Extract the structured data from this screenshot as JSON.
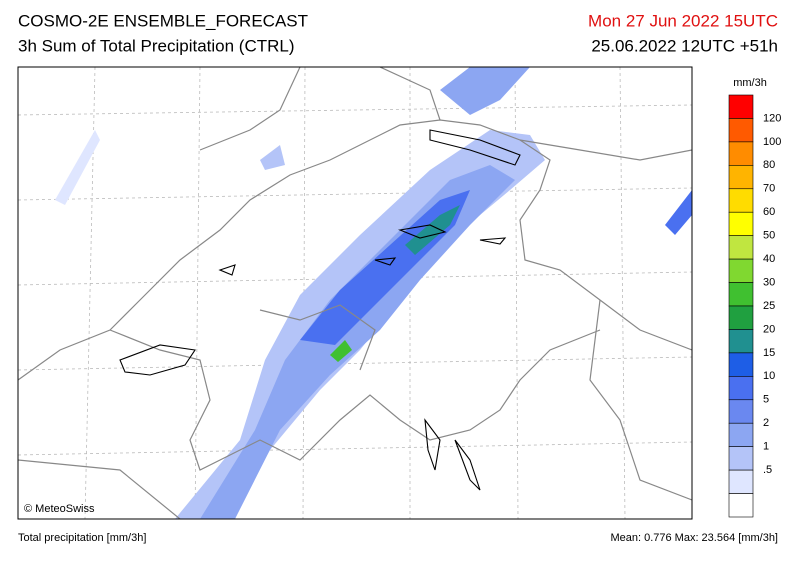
{
  "header": {
    "title": "COSMO-2E ENSEMBLE_FORECAST",
    "subtitle": "3h Sum of Total Precipitation (CTRL)",
    "valid_time": "Mon 27 Jun 2022 15UTC",
    "run": "25.06.2022 12UTC +51h"
  },
  "map": {
    "copyright": "© MeteoSwiss"
  },
  "legend": {
    "unit": "mm/3h",
    "labels": [
      "120",
      "100",
      "80",
      "70",
      "60",
      "50",
      "40",
      "30",
      "25",
      "20",
      "15",
      "10",
      "5",
      "2",
      "1",
      ".5"
    ],
    "colors": [
      "#ff0000",
      "#ff5a00",
      "#ff8c00",
      "#ffb400",
      "#ffdc00",
      "#ffff00",
      "#c0e640",
      "#80d830",
      "#40c030",
      "#20a040",
      "#209090",
      "#1e5ee6",
      "#4a70f0",
      "#6a88f0",
      "#8ca6f2",
      "#b4c4f8",
      "#dfe6ff",
      "#ffffff"
    ]
  },
  "footer": {
    "left": "Total precipitation [mm/3h]",
    "right": "Mean:  0.776 Max: 23.564 [mm/3h]"
  }
}
